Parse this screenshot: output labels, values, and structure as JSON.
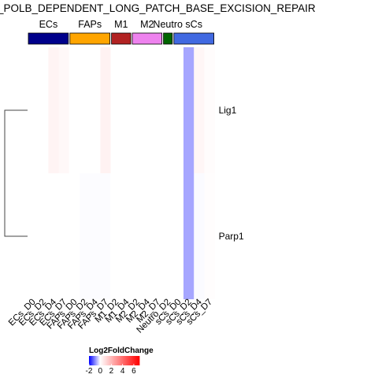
{
  "title": "E_POLB_DEPENDENT_LONG_PATCH_BASE_EXCISION_REPAIR",
  "chart_data": {
    "type": "heatmap",
    "title": "E_POLB_DEPENDENT_LONG_PATCH_BASE_EXCISION_REPAIR",
    "columns": [
      "ECs_D0",
      "ECs_D2",
      "ECs_D4",
      "ECs_D7",
      "FAPs_D0",
      "FAPs_D2",
      "FAPs_D4",
      "FAPs_D7",
      "M1_D2",
      "M1_D4",
      "M2_D2",
      "M2_D4",
      "M2_D7",
      "Neutro_D2",
      "sCs_D0",
      "sCs_D2",
      "sCs_D4",
      "sCs_D7"
    ],
    "rows": [
      "Lig1",
      "Parp1"
    ],
    "values": [
      [
        0,
        0,
        0.3,
        0.2,
        0,
        0,
        0,
        0.35,
        0,
        0,
        0,
        0,
        0,
        0,
        0,
        -0.7,
        0.25,
        0.08
      ],
      [
        0,
        0,
        0,
        0,
        0,
        -0.02,
        -0.02,
        -0.02,
        0,
        0,
        0,
        0,
        0,
        0,
        0,
        -0.7,
        -0.03,
        0.05
      ]
    ],
    "groups": [
      {
        "name": "ECs",
        "span": 4,
        "color": "#00008b"
      },
      {
        "name": "FAPs",
        "span": 4,
        "color": "#ffa500"
      },
      {
        "name": "M1",
        "span": 2,
        "color": "#b22222"
      },
      {
        "name": "M2",
        "span": 3,
        "color": "#ee82ee"
      },
      {
        "name": "Neutro",
        "span": 1,
        "color": "#006400"
      },
      {
        "name": "sCs",
        "span": 4,
        "color": "#4169e1"
      }
    ],
    "legend": {
      "title": "Log2FoldChange",
      "ticks": [
        "-2",
        "0",
        "2",
        "4",
        "6"
      ],
      "range": [
        -2,
        7
      ],
      "colors": {
        "low": "#0000ff",
        "mid": "#ffffff",
        "high": "#ff0000"
      }
    }
  }
}
